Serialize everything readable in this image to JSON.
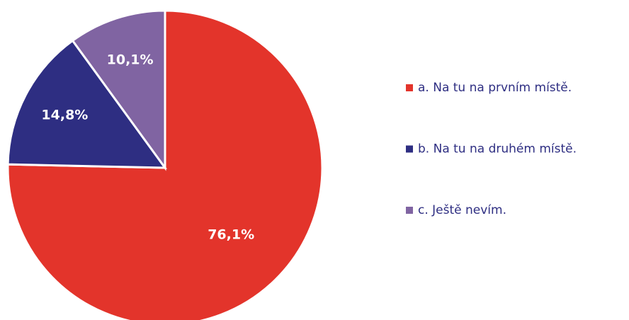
{
  "chart_data": {
    "type": "pie",
    "categories": [
      "a. Na tu na prvním místě.",
      "b. Na tu na druhém místě.",
      "c. Ještě nevím."
    ],
    "values": [
      76.1,
      14.8,
      10.1
    ],
    "value_labels": [
      "76,1%",
      "14,8%",
      "10,1%"
    ],
    "colors": [
      "#e3342b",
      "#2e2e82",
      "#8064a2"
    ],
    "legend": "right"
  }
}
